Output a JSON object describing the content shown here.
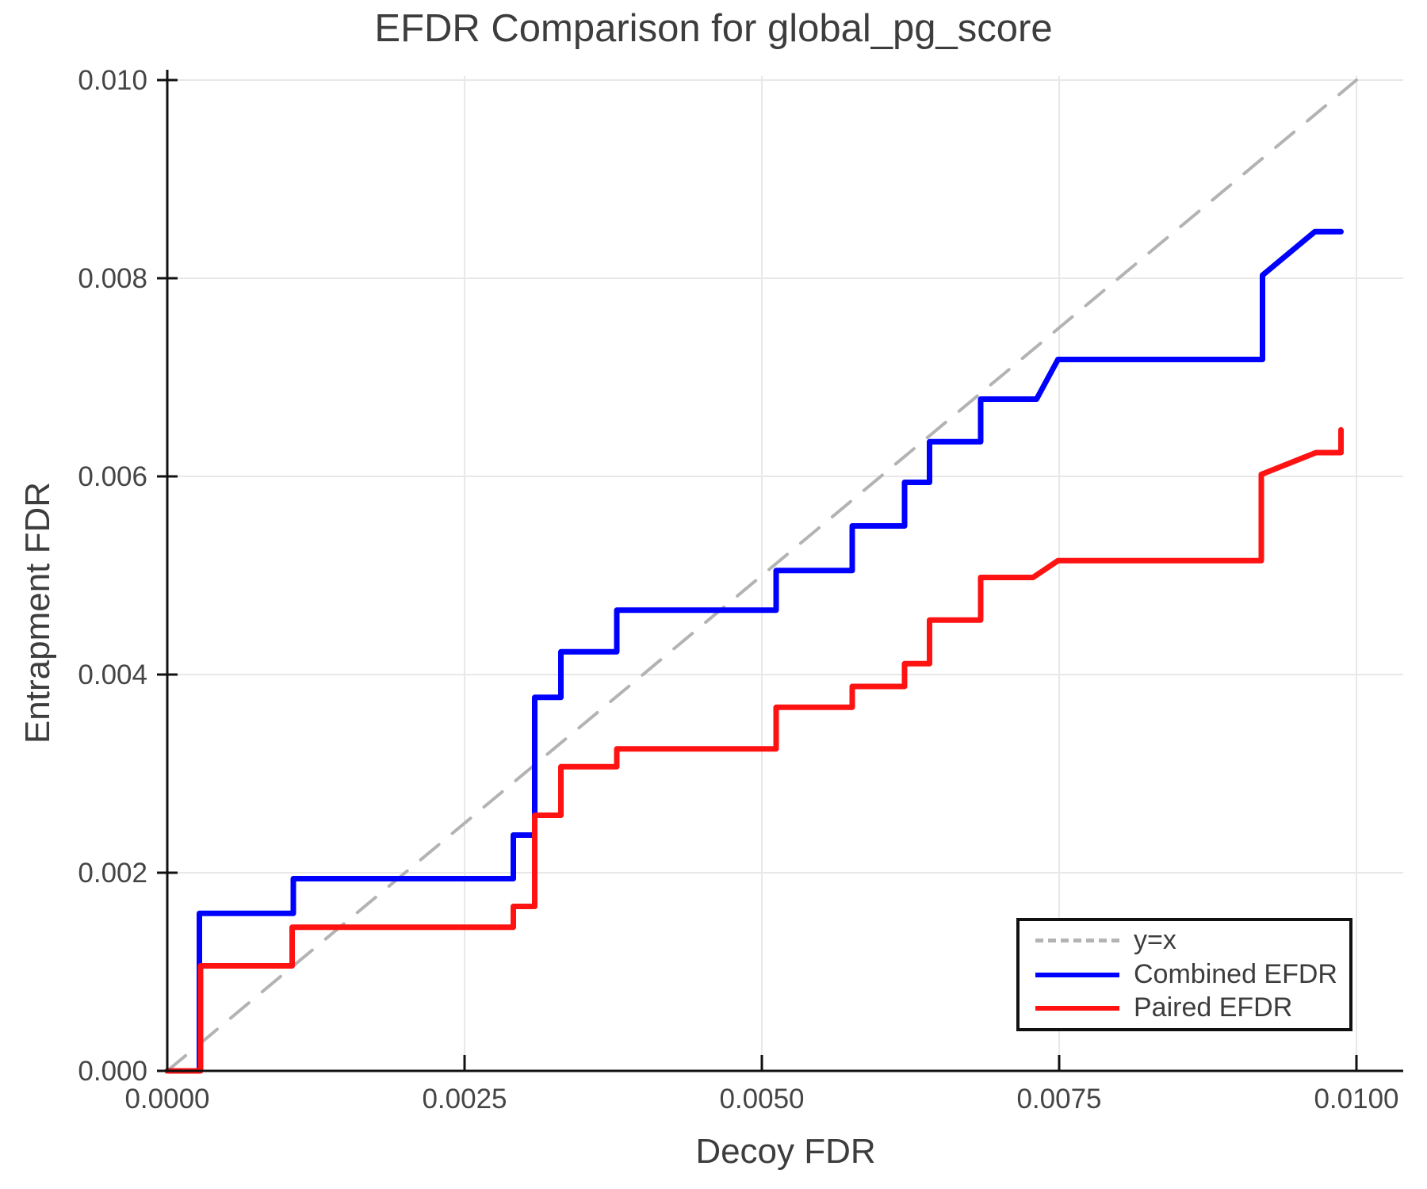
{
  "title": "EFDR Comparison for global_pg_score",
  "x_axis": {
    "label": "Decoy FDR",
    "tick_labels": [
      "0.0000",
      "0.0025",
      "0.0050",
      "0.0075",
      "0.0100"
    ],
    "tick_values": [
      0,
      0.0025,
      0.005,
      0.0075,
      0.01
    ]
  },
  "y_axis": {
    "label": "Entrapment FDR",
    "tick_labels": [
      "0.000",
      "0.002",
      "0.004",
      "0.006",
      "0.008",
      "0.010"
    ],
    "tick_values": [
      0,
      0.002,
      0.004,
      0.006,
      0.008,
      0.01
    ]
  },
  "legend": [
    {
      "label": "y=x",
      "color": "#b3b3b3",
      "style": "dashed"
    },
    {
      "label": "Combined EFDR",
      "color": "#0000ff",
      "style": "solid"
    },
    {
      "label": "Paired EFDR",
      "color": "#ff1212",
      "style": "solid"
    }
  ],
  "colors": {
    "grid": "#e8e8e8",
    "spine": "#111111",
    "tick_text": "#454545",
    "title_text": "#3d3d3d"
  },
  "chart_data": {
    "type": "line",
    "title": "EFDR Comparison for global_pg_score",
    "xlabel": "Decoy FDR",
    "ylabel": "Entrapment FDR",
    "xlim": [
      0,
      0.0104
    ],
    "ylim": [
      0,
      0.0101
    ],
    "grid": true,
    "legend_position": "lower right",
    "series": [
      {
        "name": "y=x",
        "color": "#b3b3b3",
        "style": "dashed",
        "width": 4,
        "points": [
          [
            0,
            0
          ],
          [
            0.01,
            0.01
          ]
        ]
      },
      {
        "name": "Combined EFDR",
        "color": "#0000ff",
        "style": "solid",
        "width": 7,
        "points": [
          [
            0,
            0
          ],
          [
            0.00027,
            0
          ],
          [
            0.00027,
            0.00159
          ],
          [
            0.00106,
            0.00159
          ],
          [
            0.00106,
            0.00194
          ],
          [
            0.00291,
            0.00194
          ],
          [
            0.00291,
            0.00238
          ],
          [
            0.00309,
            0.00238
          ],
          [
            0.00309,
            0.00377
          ],
          [
            0.00331,
            0.00377
          ],
          [
            0.00331,
            0.00423
          ],
          [
            0.00378,
            0.00423
          ],
          [
            0.00378,
            0.00465
          ],
          [
            0.00512,
            0.00465
          ],
          [
            0.00512,
            0.00505
          ],
          [
            0.00576,
            0.00505
          ],
          [
            0.00576,
            0.0055
          ],
          [
            0.0062,
            0.0055
          ],
          [
            0.0062,
            0.00594
          ],
          [
            0.00641,
            0.00594
          ],
          [
            0.00641,
            0.00635
          ],
          [
            0.00684,
            0.00635
          ],
          [
            0.00684,
            0.00678
          ],
          [
            0.00731,
            0.00678
          ],
          [
            0.00749,
            0.00718
          ],
          [
            0.00921,
            0.00718
          ],
          [
            0.00921,
            0.00803
          ],
          [
            0.00965,
            0.00847
          ],
          [
            0.00987,
            0.00847
          ]
        ]
      },
      {
        "name": "Paired EFDR",
        "color": "#ff1212",
        "style": "solid",
        "width": 7,
        "points": [
          [
            0,
            0
          ],
          [
            0.00028,
            0
          ],
          [
            0.00028,
            0.00106
          ],
          [
            0.00105,
            0.00106
          ],
          [
            0.00105,
            0.00145
          ],
          [
            0.00291,
            0.00145
          ],
          [
            0.00291,
            0.00166
          ],
          [
            0.00309,
            0.00166
          ],
          [
            0.00309,
            0.00258
          ],
          [
            0.00331,
            0.00258
          ],
          [
            0.00331,
            0.00307
          ],
          [
            0.00378,
            0.00307
          ],
          [
            0.00378,
            0.00325
          ],
          [
            0.00512,
            0.00325
          ],
          [
            0.00512,
            0.00367
          ],
          [
            0.00576,
            0.00367
          ],
          [
            0.00576,
            0.00388
          ],
          [
            0.0062,
            0.00388
          ],
          [
            0.0062,
            0.00411
          ],
          [
            0.00641,
            0.00411
          ],
          [
            0.00641,
            0.00455
          ],
          [
            0.00684,
            0.00455
          ],
          [
            0.00684,
            0.00498
          ],
          [
            0.00728,
            0.00498
          ],
          [
            0.00749,
            0.00515
          ],
          [
            0.0092,
            0.00515
          ],
          [
            0.0092,
            0.00602
          ],
          [
            0.00966,
            0.00624
          ],
          [
            0.00987,
            0.00624
          ],
          [
            0.00987,
            0.00647
          ]
        ]
      }
    ]
  }
}
